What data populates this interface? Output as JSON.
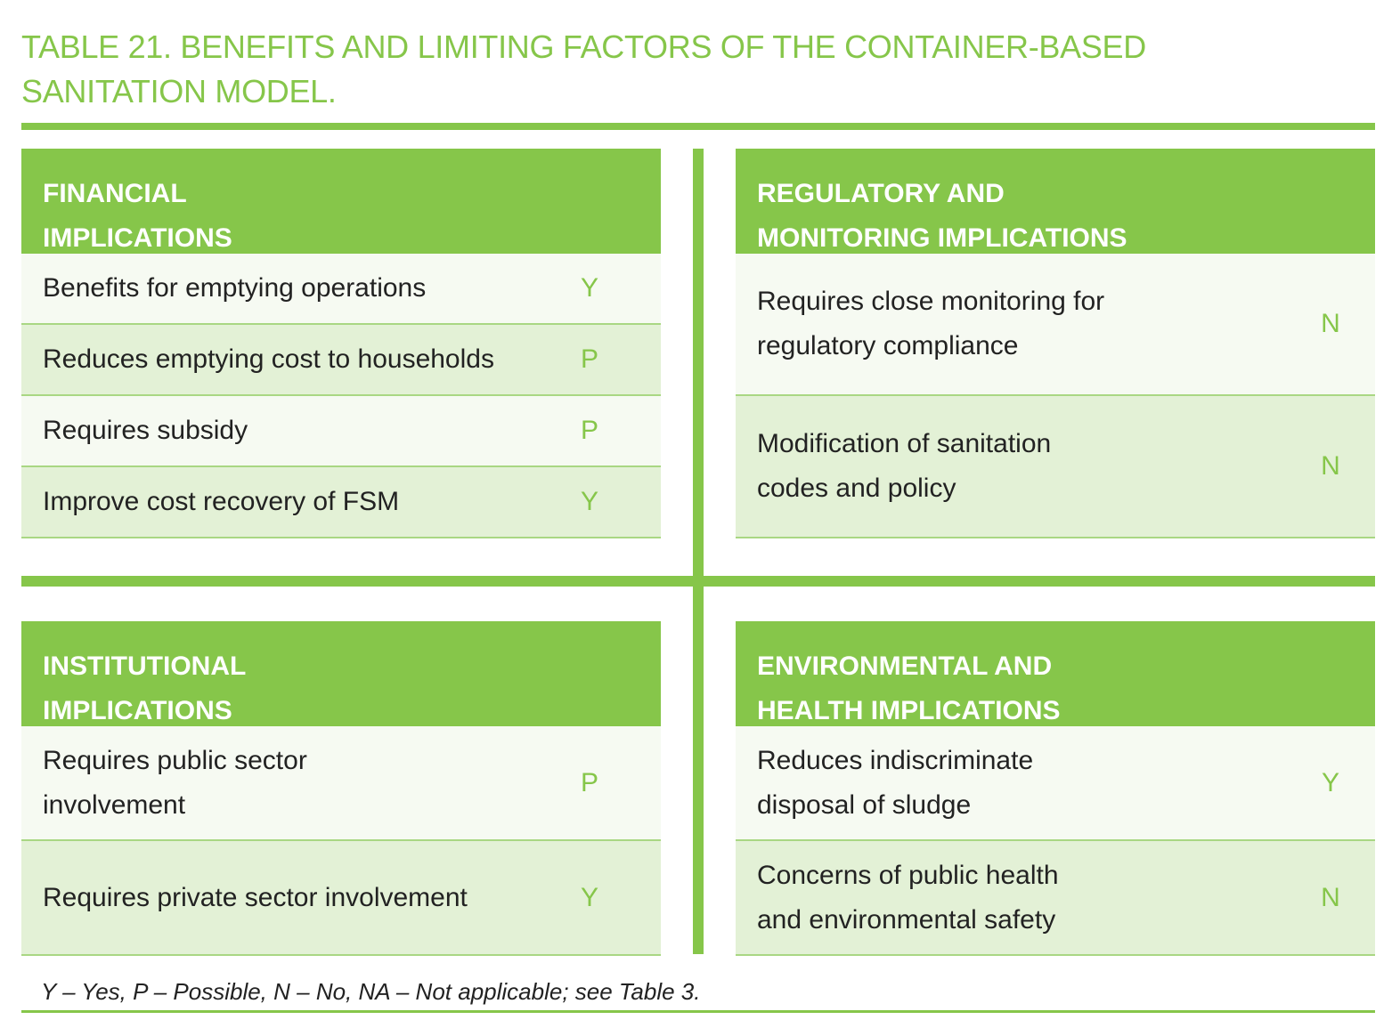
{
  "title": {
    "line1": "TABLE 21. BENEFITS AND LIMITING FACTORS OF THE CONTAINER-BASED",
    "line2": "SANITATION MODEL."
  },
  "colors": {
    "accent": "#86c64a",
    "row_light": "#f6faf2",
    "row_dark": "#e3f1d6"
  },
  "panels": {
    "financial": {
      "header": [
        "FINANCIAL",
        "IMPLICATIONS"
      ],
      "rows": [
        {
          "label": [
            "Benefits for emptying operations"
          ],
          "mark": "Y"
        },
        {
          "label": [
            "Reduces emptying cost to households"
          ],
          "mark": "P"
        },
        {
          "label": [
            "Requires subsidy"
          ],
          "mark": "P"
        },
        {
          "label": [
            "Improve cost recovery of FSM"
          ],
          "mark": "Y"
        }
      ]
    },
    "regulatory": {
      "header": [
        "REGULATORY AND",
        "MONITORING IMPLICATIONS"
      ],
      "rows": [
        {
          "label": [
            "Requires close monitoring for",
            "regulatory compliance"
          ],
          "mark": "N"
        },
        {
          "label": [
            "Modification of sanitation",
            "codes and policy"
          ],
          "mark": "N"
        }
      ]
    },
    "institutional": {
      "header": [
        "INSTITUTIONAL",
        "IMPLICATIONS"
      ],
      "rows": [
        {
          "label": [
            "Requires public sector",
            "involvement"
          ],
          "mark": "P"
        },
        {
          "label": [
            "Requires private sector involvement"
          ],
          "mark": "Y"
        }
      ]
    },
    "environmental": {
      "header": [
        "ENVIRONMENTAL AND",
        "HEALTH IMPLICATIONS"
      ],
      "rows": [
        {
          "label": [
            "Reduces indiscriminate",
            "disposal of sludge"
          ],
          "mark": "Y"
        },
        {
          "label": [
            "Concerns of public health",
            "and environmental safety"
          ],
          "mark": "N"
        }
      ]
    }
  },
  "footnote": "Y – Yes, P – Possible, N – No, NA – Not applicable; see Table 3."
}
